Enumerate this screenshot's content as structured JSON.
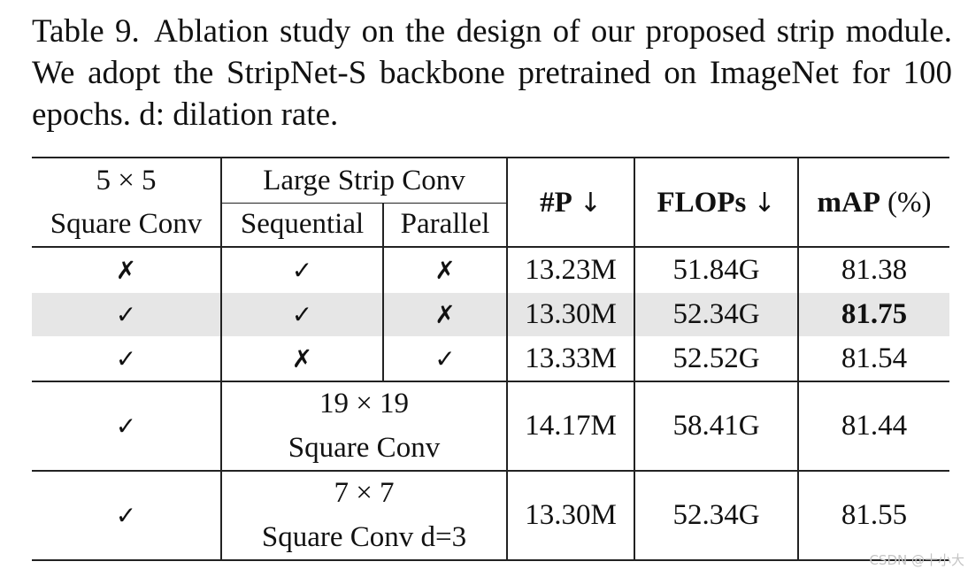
{
  "caption": {
    "label": "Table 9.",
    "text": "Ablation study on the design of our proposed strip module. We adopt the StripNet-S backbone pretrained on ImageNet for 100 epochs. d: dilation rate."
  },
  "header": {
    "col1_line1": "5 × 5",
    "col1_line2": "Square Conv",
    "group": "Large Strip Conv",
    "sequential": "Sequential",
    "parallel": "Parallel",
    "params": "#P",
    "flops": "FLOPs",
    "map": "mAP",
    "map_unit": "(%)",
    "arrow": "↓"
  },
  "rows": [
    {
      "square": "✗",
      "sequential": "✓",
      "parallel": "✗",
      "params": "13.23M",
      "flops": "51.84G",
      "map": "81.38"
    },
    {
      "square": "✓",
      "sequential": "✓",
      "parallel": "✗",
      "params": "13.30M",
      "flops": "52.34G",
      "map": "81.75"
    },
    {
      "square": "✓",
      "sequential": "✗",
      "parallel": "✓",
      "params": "13.33M",
      "flops": "52.52G",
      "map": "81.54"
    },
    {
      "square": "✓",
      "alt_line1": "19 × 19",
      "alt_line2": "Square Conv",
      "params": "14.17M",
      "flops": "58.41G",
      "map": "81.44"
    },
    {
      "square": "✓",
      "alt_line1": "7 × 7",
      "alt_line2": "Square Conv d=3",
      "params": "13.30M",
      "flops": "52.34G",
      "map": "81.55"
    }
  ],
  "watermark": "CSDN @十小大"
}
